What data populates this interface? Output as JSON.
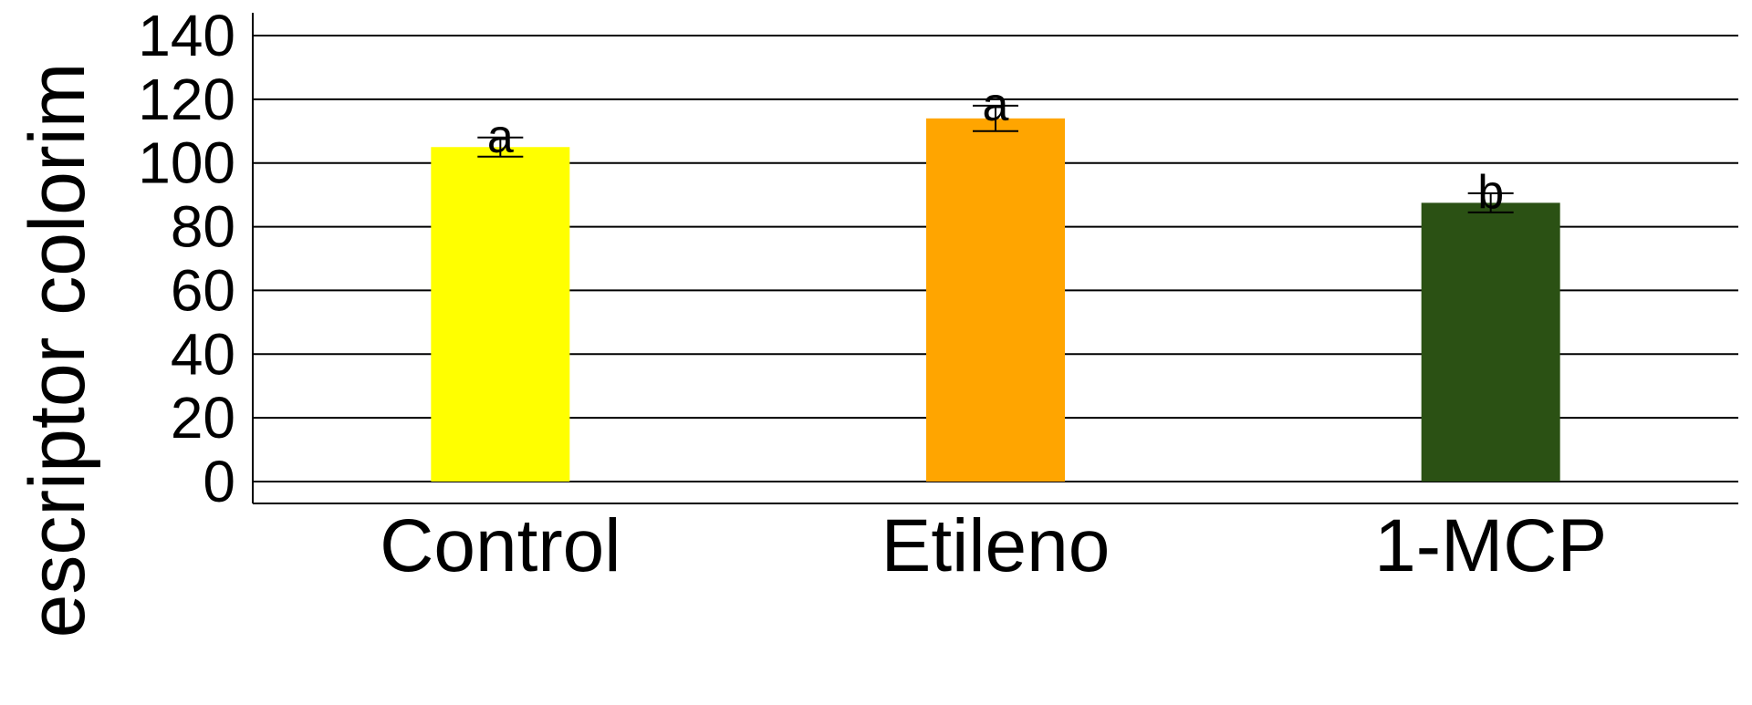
{
  "chart_data": {
    "type": "bar",
    "title": "",
    "xlabel": "",
    "ylabel": "escriptor colorim",
    "categories": [
      "Control",
      "Etileno",
      "1-MCP"
    ],
    "values": [
      105,
      114,
      87.5
    ],
    "errors": [
      3,
      4,
      3
    ],
    "significance_letters": [
      "a",
      "a",
      "b"
    ],
    "bar_colors": [
      "#FFFF00",
      "#FFA500",
      "#2B5114"
    ],
    "ylim": [
      0,
      140
    ],
    "yticks": [
      "0",
      "20",
      "40",
      "60",
      "80",
      "100",
      "120",
      "140"
    ],
    "grid": "horizontal",
    "legend": "none"
  }
}
